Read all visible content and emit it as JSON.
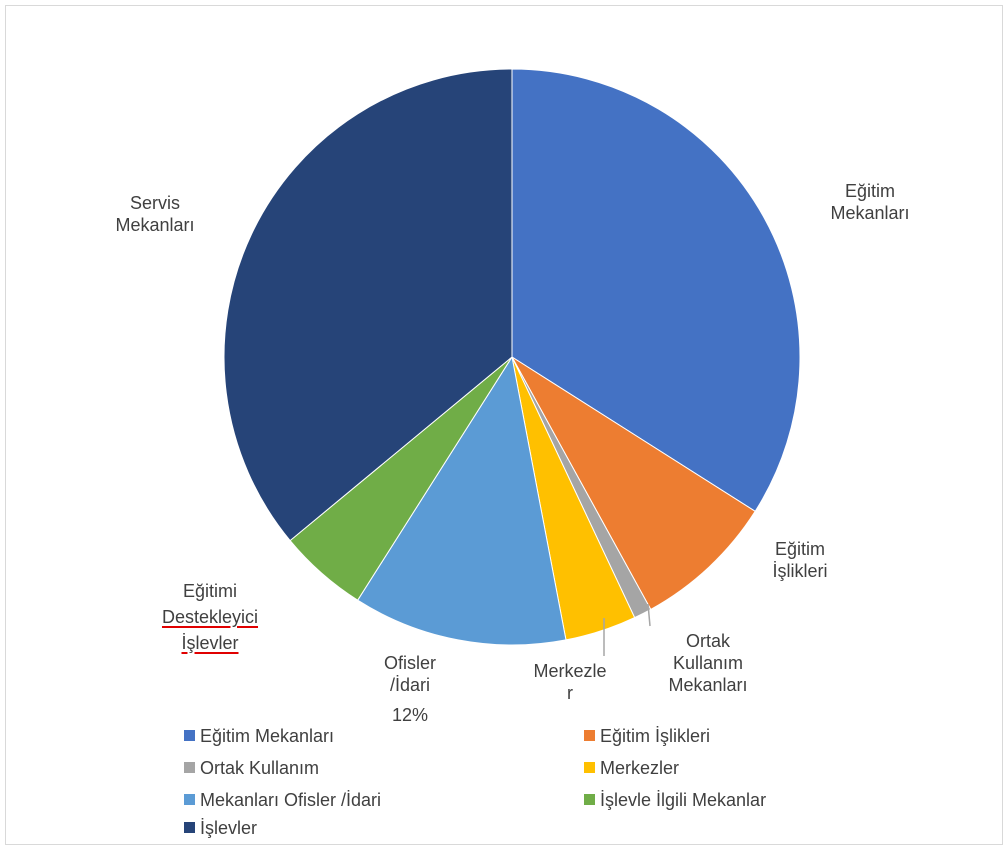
{
  "chart_data": {
    "type": "pie",
    "title": "",
    "slices": [
      {
        "label": "Eğitim Mekanları",
        "value": 34,
        "color": "#4472C4"
      },
      {
        "label": "Eğitim İşlikleri",
        "value": 8,
        "color": "#ED7D31"
      },
      {
        "label": "Ortak Kullanım Mekanları",
        "value": 1,
        "color": "#A5A5A5"
      },
      {
        "label": "Merkezler",
        "value": 4,
        "color": "#FFC000"
      },
      {
        "label": "Ofisler /İdari",
        "value": 12,
        "color": "#5B9BD5"
      },
      {
        "label": "Eğitimi Destekleyici İşlevler",
        "value": 5,
        "color": "#70AD47"
      },
      {
        "label": "Servis Mekanları",
        "value": 36,
        "color": "#264478"
      }
    ],
    "data_labels": {
      "egitim_mekanlari": "Eğitim\nMekanları",
      "egitim_islikleri": "Eğitim\nİşlikleri",
      "ortak_kullanim": "Ortak\nKullanım\nMekanları",
      "merkezler": "Merkezle\nr",
      "ofisler": "Ofisler\n/İdari",
      "ofisler_pct": "12%",
      "egitimi_destekleyici_1": "Eğitimi",
      "egitimi_destekleyici_2": "Destekleyici",
      "egitimi_destekleyici_3": "İşlevler",
      "servis": "Servis\nMekanları"
    },
    "legend": {
      "placement": "bottom",
      "entries": [
        {
          "text": "Eğitim Mekanları",
          "color": "#4472C4"
        },
        {
          "text": "Eğitim İşlikleri",
          "color": "#ED7D31"
        },
        {
          "text": "Ortak Kullanım",
          "color": "#A5A5A5"
        },
        {
          "text": "Merkezler",
          "color": "#FFC000"
        },
        {
          "text": "Mekanları Ofisler /İdari",
          "color": "#5B9BD5"
        },
        {
          "text": "İşlevle İlgili Mekanlar",
          "color": "#70AD47"
        },
        {
          "text": "İşlevler",
          "color": "#264478"
        }
      ]
    }
  }
}
